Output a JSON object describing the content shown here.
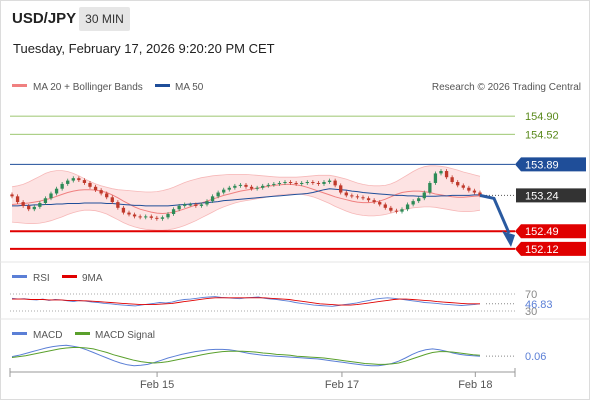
{
  "header": {
    "symbol": "USD/JPY",
    "timeframe": "30 MIN",
    "datetime": "Tuesday, February 17, 2026 9:20:20 PM CET"
  },
  "legend": {
    "ma20": "MA 20 + Bollinger Bands",
    "ma50": "MA 50",
    "watermark": "Research © 2026 Trading Central",
    "rsi": "RSI",
    "rsi_ma": "9MA",
    "macd": "MACD",
    "macd_signal": "MACD Signal"
  },
  "colors": {
    "ma20": "#f08080",
    "ma50": "#1f4e99",
    "band_fill": "#fde3e3",
    "candle_up": "#2e8b57",
    "candle_down": "#c0392b",
    "resistance": "#7cb342",
    "pivot": "#1f4e99",
    "support": "#e00000",
    "current": "#333333",
    "arrow": "#2a5aa0",
    "rsi": "#5b7fd6",
    "rsi_ma": "#e00000",
    "macd": "#5b7fd6",
    "macd_signal": "#5aa02c"
  },
  "chart_data": [
    {
      "type": "candlestick",
      "title": "USD/JPY 30 MIN",
      "ylim": [
        151.95,
        155.3
      ],
      "x_ticks": [
        "Feb 15",
        "Feb 17",
        "Feb 18"
      ],
      "levels": [
        {
          "value": 154.9,
          "label": "154.90",
          "kind": "resistance"
        },
        {
          "value": 154.52,
          "label": "154.52",
          "kind": "resistance"
        },
        {
          "value": 153.89,
          "label": "153.89",
          "kind": "pivot"
        },
        {
          "value": 153.24,
          "label": "153.24",
          "kind": "current"
        },
        {
          "value": 152.49,
          "label": "152.49",
          "kind": "support"
        },
        {
          "value": 152.12,
          "label": "152.12",
          "kind": "support"
        }
      ],
      "forecast_arrow": {
        "from": 153.24,
        "to": 152.2,
        "direction": "down"
      },
      "close": [
        153.22,
        153.1,
        153.02,
        152.95,
        153.0,
        153.08,
        153.18,
        153.28,
        153.38,
        153.48,
        153.55,
        153.6,
        153.56,
        153.5,
        153.42,
        153.35,
        153.28,
        153.2,
        153.1,
        152.98,
        152.88,
        152.84,
        152.8,
        152.78,
        152.8,
        152.77,
        152.75,
        152.78,
        152.85,
        152.95,
        153.02,
        153.05,
        153.05,
        153.02,
        153.05,
        153.12,
        153.22,
        153.3,
        153.36,
        153.4,
        153.44,
        153.46,
        153.42,
        153.38,
        153.4,
        153.44,
        153.46,
        153.48,
        153.5,
        153.52,
        153.5,
        153.48,
        153.5,
        153.52,
        153.5,
        153.48,
        153.52,
        153.55,
        153.45,
        153.3,
        153.24,
        153.22,
        153.2,
        153.18,
        153.14,
        153.1,
        153.05,
        152.98,
        152.92,
        152.9,
        152.95,
        153.05,
        153.12,
        153.18,
        153.3,
        153.5,
        153.7,
        153.75,
        153.62,
        153.52,
        153.45,
        153.4,
        153.34,
        153.3,
        153.24
      ],
      "ma20": [
        153.05,
        153.06,
        153.07,
        153.08,
        153.1,
        153.12,
        153.15,
        153.18,
        153.22,
        153.26,
        153.3,
        153.33,
        153.35,
        153.36,
        153.36,
        153.35,
        153.33,
        153.3,
        153.25,
        153.19,
        153.12,
        153.06,
        153.0,
        152.95,
        152.92,
        152.89,
        152.87,
        152.86,
        152.87,
        152.89,
        152.92,
        152.96,
        153.0,
        153.04,
        153.08,
        153.12,
        153.16,
        153.2,
        153.24,
        153.27,
        153.3,
        153.33,
        153.35,
        153.37,
        153.39,
        153.41,
        153.43,
        153.45,
        153.46,
        153.47,
        153.47,
        153.46,
        153.44,
        153.41,
        153.37,
        153.33,
        153.29,
        153.25,
        153.21,
        153.18,
        153.15,
        153.12,
        153.1,
        153.09,
        153.09,
        153.1,
        153.12,
        153.16,
        153.21,
        153.26,
        153.3,
        153.32,
        153.33,
        153.33,
        153.32,
        153.3,
        153.27,
        153.25,
        153.23,
        153.21,
        153.2,
        153.2,
        153.21,
        153.22,
        153.23
      ],
      "upper_band": [
        153.42,
        153.44,
        153.47,
        153.52,
        153.58,
        153.64,
        153.7,
        153.74,
        153.76,
        153.76,
        153.74,
        153.7,
        153.65,
        153.59,
        153.53,
        153.48,
        153.44,
        153.41,
        153.38,
        153.36,
        153.35,
        153.34,
        153.33,
        153.32,
        153.31,
        153.31,
        153.32,
        153.34,
        153.37,
        153.41,
        153.46,
        153.51,
        153.55,
        153.58,
        153.61,
        153.63,
        153.65,
        153.66,
        153.67,
        153.68,
        153.68,
        153.68,
        153.68,
        153.67,
        153.66,
        153.65,
        153.64,
        153.63,
        153.62,
        153.62,
        153.62,
        153.62,
        153.63,
        153.64,
        153.65,
        153.66,
        153.66,
        153.66,
        153.64,
        153.61,
        153.58,
        153.54,
        153.5,
        153.47,
        153.45,
        153.44,
        153.44,
        153.45,
        153.48,
        153.53,
        153.6,
        153.67,
        153.74,
        153.8,
        153.84,
        153.86,
        153.86,
        153.85,
        153.83,
        153.8,
        153.77,
        153.73,
        153.7,
        153.67,
        153.64
      ],
      "lower_band": [
        152.68,
        152.67,
        152.66,
        152.65,
        152.65,
        152.66,
        152.68,
        152.71,
        152.75,
        152.79,
        152.84,
        152.88,
        152.91,
        152.93,
        152.93,
        152.92,
        152.89,
        152.85,
        152.79,
        152.73,
        152.67,
        152.62,
        152.58,
        152.55,
        152.53,
        152.52,
        152.51,
        152.51,
        152.52,
        152.54,
        152.57,
        152.61,
        152.66,
        152.71,
        152.77,
        152.83,
        152.89,
        152.95,
        153.0,
        153.04,
        153.08,
        153.11,
        153.13,
        153.15,
        153.17,
        153.19,
        153.21,
        153.23,
        153.25,
        153.26,
        153.27,
        153.27,
        153.26,
        153.24,
        153.21,
        153.17,
        153.12,
        153.07,
        153.01,
        152.96,
        152.91,
        152.87,
        152.84,
        152.82,
        152.81,
        152.81,
        152.82,
        152.84,
        152.87,
        152.9,
        152.93,
        152.96,
        152.98,
        152.99,
        153.0,
        153.0,
        152.99,
        152.97,
        152.95,
        152.93,
        152.91,
        152.9,
        152.9,
        152.91,
        152.93
      ],
      "ma50": [
        153.02,
        153.02,
        153.03,
        153.03,
        153.04,
        153.04,
        153.05,
        153.05,
        153.06,
        153.06,
        153.07,
        153.07,
        153.07,
        153.08,
        153.08,
        153.08,
        153.08,
        153.07,
        153.07,
        153.06,
        153.05,
        153.04,
        153.03,
        153.03,
        153.02,
        153.02,
        153.02,
        153.02,
        153.02,
        153.03,
        153.04,
        153.05,
        153.06,
        153.07,
        153.08,
        153.09,
        153.1,
        153.11,
        153.13,
        153.14,
        153.15,
        153.16,
        153.17,
        153.18,
        153.19,
        153.2,
        153.21,
        153.22,
        153.23,
        153.24,
        153.25,
        153.26,
        153.27,
        153.28,
        153.3,
        153.33,
        153.36,
        153.38,
        153.37,
        153.36,
        153.35,
        153.33,
        153.32,
        153.3,
        153.29,
        153.28,
        153.27,
        153.26,
        153.25,
        153.24,
        153.24,
        153.23,
        153.23,
        153.22,
        153.22,
        153.22,
        153.22,
        153.23,
        153.23,
        153.24,
        153.24,
        153.24,
        153.24,
        153.25,
        153.25
      ]
    },
    {
      "type": "line",
      "title": "RSI",
      "ylim": [
        30,
        70
      ],
      "levels": [
        70,
        30
      ],
      "current_value": "46.83",
      "series": [
        {
          "name": "RSI",
          "values": [
            60,
            58,
            59,
            57,
            56,
            58,
            55,
            57,
            56,
            54,
            52,
            55,
            53,
            51,
            50,
            48,
            47,
            45,
            44,
            43,
            42,
            44,
            46,
            48,
            50,
            49,
            51,
            55,
            57,
            58,
            60,
            62,
            63,
            64,
            62,
            61,
            60,
            59,
            61,
            62,
            63,
            60,
            58,
            57,
            55,
            53,
            50,
            48,
            46,
            44,
            43,
            42,
            41,
            43,
            45,
            47,
            49,
            52,
            55,
            58,
            60,
            61,
            60,
            58,
            56,
            54,
            52,
            50,
            49,
            48,
            46,
            45,
            44,
            43,
            44,
            45,
            47
          ]
        },
        {
          "name": "9MA",
          "values": [
            58,
            58,
            58,
            57,
            57,
            57,
            56,
            56,
            56,
            55,
            55,
            54,
            54,
            53,
            52,
            51,
            50,
            49,
            48,
            47,
            46,
            45,
            45,
            45,
            46,
            47,
            48,
            50,
            52,
            54,
            56,
            58,
            60,
            61,
            61,
            61,
            61,
            61,
            61,
            61,
            61,
            61,
            60,
            59,
            58,
            57,
            55,
            53,
            51,
            49,
            47,
            46,
            45,
            44,
            44,
            44,
            45,
            47,
            49,
            51,
            53,
            55,
            57,
            58,
            58,
            57,
            56,
            55,
            54,
            52,
            51,
            50,
            49,
            48,
            47,
            47,
            47
          ]
        }
      ]
    },
    {
      "type": "line",
      "title": "MACD",
      "current_value": "0.06",
      "series": [
        {
          "name": "MACD",
          "values": [
            0.05,
            0.08,
            0.12,
            0.16,
            0.2,
            0.24,
            0.27,
            0.29,
            0.3,
            0.28,
            0.25,
            0.2,
            0.14,
            0.08,
            0.02,
            -0.04,
            -0.09,
            -0.13,
            -0.15,
            -0.14,
            -0.12,
            -0.08,
            -0.03,
            0.02,
            0.06,
            0.1,
            0.13,
            0.16,
            0.18,
            0.2,
            0.21,
            0.21,
            0.2,
            0.18,
            0.15,
            0.12,
            0.1,
            0.08,
            0.07,
            0.06,
            0.05,
            0.04,
            0.03,
            0.02,
            0.01,
            0.0,
            -0.02,
            -0.04,
            -0.06,
            -0.08,
            -0.1,
            -0.12,
            -0.14,
            -0.15,
            -0.15,
            -0.13,
            -0.1,
            -0.05,
            0.02,
            0.1,
            0.16,
            0.2,
            0.22,
            0.2,
            0.17,
            0.13,
            0.1,
            0.08,
            0.07,
            0.06
          ]
        },
        {
          "name": "MACD Signal",
          "values": [
            0.03,
            0.05,
            0.07,
            0.1,
            0.13,
            0.16,
            0.19,
            0.22,
            0.24,
            0.25,
            0.25,
            0.24,
            0.22,
            0.18,
            0.14,
            0.09,
            0.05,
            0.01,
            -0.03,
            -0.06,
            -0.08,
            -0.09,
            -0.08,
            -0.06,
            -0.03,
            0.0,
            0.03,
            0.06,
            0.09,
            0.12,
            0.14,
            0.16,
            0.17,
            0.17,
            0.17,
            0.16,
            0.15,
            0.13,
            0.12,
            0.1,
            0.09,
            0.08,
            0.06,
            0.05,
            0.04,
            0.03,
            0.02,
            0.0,
            -0.02,
            -0.04,
            -0.06,
            -0.08,
            -0.1,
            -0.11,
            -0.12,
            -0.12,
            -0.11,
            -0.09,
            -0.05,
            0.0,
            0.05,
            0.1,
            0.14,
            0.16,
            0.16,
            0.15,
            0.13,
            0.11,
            0.09,
            0.08
          ]
        }
      ]
    }
  ]
}
